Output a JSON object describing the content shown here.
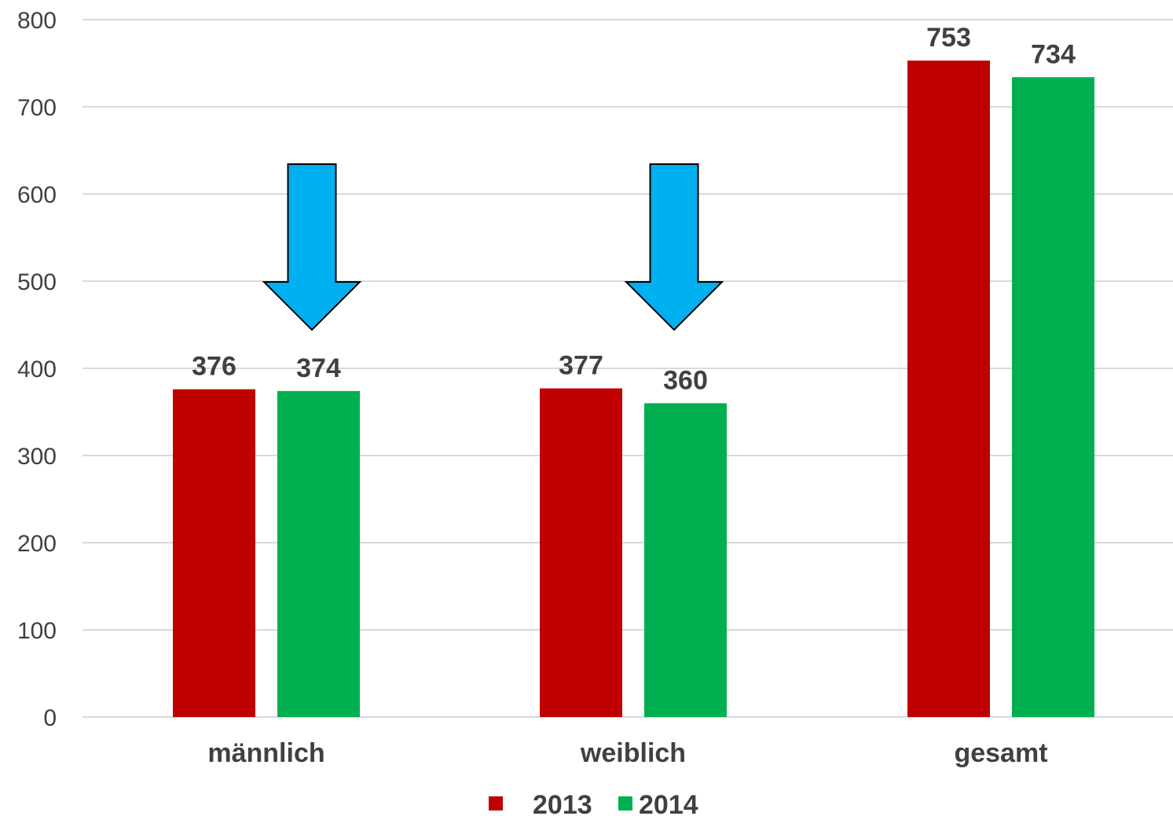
{
  "chart_data": {
    "type": "bar",
    "categories": [
      "männlich",
      "weiblich",
      "gesamt"
    ],
    "series": [
      {
        "name": "2013",
        "values": [
          376,
          377,
          753
        ],
        "color": "#C00000"
      },
      {
        "name": "2014",
        "values": [
          374,
          360,
          734
        ],
        "color": "#00B050"
      }
    ],
    "ylim": [
      0,
      800
    ],
    "yticks": [
      0,
      100,
      200,
      300,
      400,
      500,
      600,
      700,
      800
    ],
    "grid": true,
    "legend": "bottom-center",
    "annotations": [
      {
        "type": "arrow-down",
        "category": "männlich",
        "color": "#00B0F0"
      },
      {
        "type": "arrow-down",
        "category": "weiblich",
        "color": "#00B0F0"
      },
      {
        "type": "arrow-down",
        "category": "gesamt",
        "color": "#00B0F0"
      }
    ],
    "gridline_color": "#D9D9D9"
  }
}
